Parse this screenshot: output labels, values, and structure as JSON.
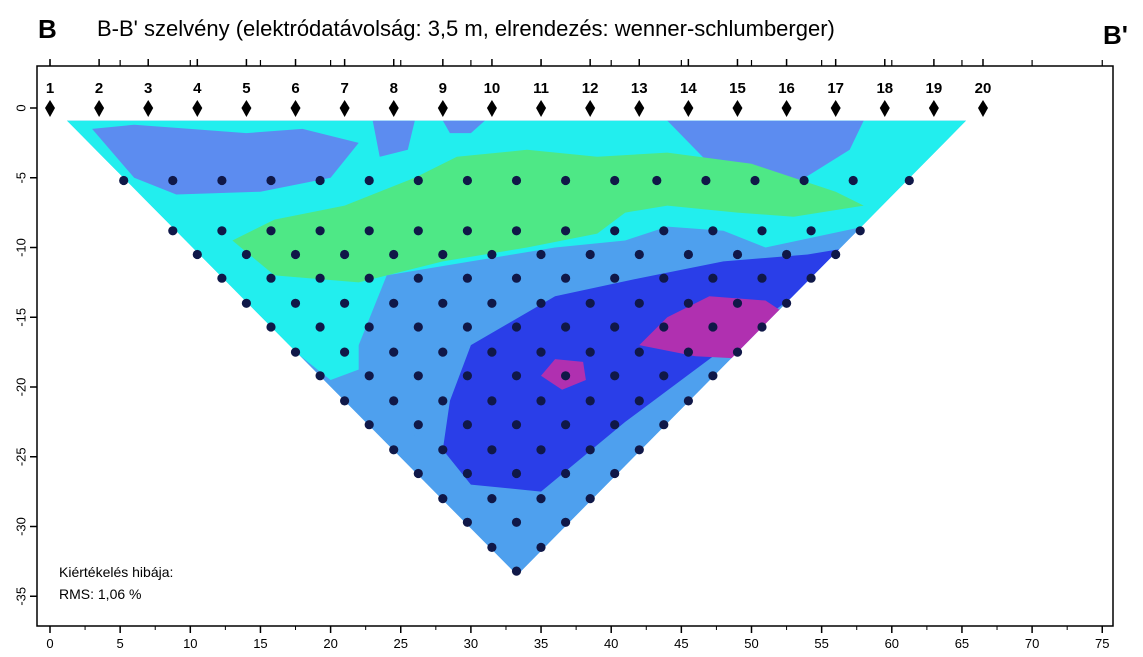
{
  "header": {
    "left_marker": "B",
    "right_marker": "B'",
    "title": "B-B' szelvény (elektródatávolság: 3,5 m, elrendezés: wenner-schlumberger)"
  },
  "colors": {
    "cyan": "#22eeee",
    "blue_medium": "#4ea0ee",
    "blue_light": "#5c8cf0",
    "blue_dark": "#2a3ee8",
    "green": "#4ee886",
    "magenta": "#b030b0",
    "data_point": "#101848"
  },
  "annotation": {
    "line1": "Kiértékelés hibája:",
    "line2": "RMS: 1,06 %"
  },
  "chart_data": {
    "type": "heatmap",
    "title": "B-B' szelvény (elektródatávolság: 3,5 m, elrendezés: wenner-schlumberger)",
    "xlabel": "",
    "ylabel": "",
    "xlim": [
      0,
      77
    ],
    "ylim": [
      -37,
      2
    ],
    "x_ticks": [
      0,
      5,
      10,
      15,
      20,
      25,
      30,
      35,
      40,
      45,
      50,
      55,
      60,
      65,
      70,
      75
    ],
    "y_ticks": [
      0,
      -5,
      -10,
      -15,
      -20,
      -25,
      -30,
      -35
    ],
    "electrode_spacing_m": 3.5,
    "electrodes": [
      {
        "label": "1",
        "x": 0.0
      },
      {
        "label": "2",
        "x": 3.5
      },
      {
        "label": "3",
        "x": 7.0
      },
      {
        "label": "4",
        "x": 10.5
      },
      {
        "label": "5",
        "x": 14.0
      },
      {
        "label": "6",
        "x": 17.5
      },
      {
        "label": "7",
        "x": 21.0
      },
      {
        "label": "8",
        "x": 24.5
      },
      {
        "label": "9",
        "x": 28.0
      },
      {
        "label": "10",
        "x": 31.5
      },
      {
        "label": "11",
        "x": 35.0
      },
      {
        "label": "12",
        "x": 38.5
      },
      {
        "label": "13",
        "x": 42.0
      },
      {
        "label": "14",
        "x": 45.5
      },
      {
        "label": "15",
        "x": 49.0
      },
      {
        "label": "16",
        "x": 52.5
      },
      {
        "label": "17",
        "x": 56.0
      },
      {
        "label": "18",
        "x": 59.5
      },
      {
        "label": "19",
        "x": 63.0
      },
      {
        "label": "20",
        "x": 66.5
      }
    ],
    "section_outline": [
      [
        1.2,
        -0.9
      ],
      [
        65.3,
        -0.9
      ],
      [
        33.3,
        -33.5
      ]
    ],
    "measurement_rows": [
      {
        "depth": -5.2,
        "points": [
          5.25,
          8.75,
          12.25,
          15.75,
          19.25,
          22.75,
          26.25,
          29.75,
          33.25,
          36.75,
          40.25,
          43.25,
          46.75,
          50.25,
          53.75,
          57.25,
          61.25
        ]
      },
      {
        "depth": -8.8,
        "points": [
          8.75,
          12.25,
          15.75,
          19.25,
          22.75,
          26.25,
          29.75,
          33.25,
          36.75,
          40.25,
          43.75,
          47.25,
          50.75,
          54.25,
          57.75
        ]
      },
      {
        "depth": -10.5,
        "points": [
          10.5,
          14.0,
          17.5,
          21.0,
          24.5,
          28.0,
          31.5,
          35.0,
          38.5,
          42.0,
          45.5,
          49.0,
          52.5,
          56.0
        ]
      },
      {
        "depth": -12.2,
        "points": [
          12.25,
          15.75,
          19.25,
          22.75,
          26.25,
          29.75,
          33.25,
          36.75,
          40.25,
          43.75,
          47.25,
          50.75,
          54.25
        ]
      },
      {
        "depth": -14.0,
        "points": [
          14.0,
          17.5,
          21.0,
          24.5,
          28.0,
          31.5,
          35.0,
          38.5,
          42.0,
          45.5,
          49.0,
          52.5
        ]
      },
      {
        "depth": -15.7,
        "points": [
          15.75,
          19.25,
          22.75,
          26.25,
          29.75,
          33.25,
          36.75,
          40.25,
          43.75,
          47.25,
          50.75
        ]
      },
      {
        "depth": -17.5,
        "points": [
          17.5,
          21.0,
          24.5,
          28.0,
          31.5,
          35.0,
          38.5,
          42.0,
          45.5,
          49.0
        ]
      },
      {
        "depth": -19.2,
        "points": [
          19.25,
          22.75,
          26.25,
          29.75,
          33.25,
          36.75,
          40.25,
          43.75,
          47.25
        ]
      },
      {
        "depth": -21.0,
        "points": [
          21.0,
          24.5,
          28.0,
          31.5,
          35.0,
          38.5,
          42.0,
          45.5
        ]
      },
      {
        "depth": -22.7,
        "points": [
          22.75,
          26.25,
          29.75,
          33.25,
          36.75,
          40.25,
          43.75
        ]
      },
      {
        "depth": -24.5,
        "points": [
          24.5,
          28.0,
          31.5,
          35.0,
          38.5,
          42.0
        ]
      },
      {
        "depth": -26.2,
        "points": [
          26.25,
          29.75,
          33.25,
          36.75,
          40.25
        ]
      },
      {
        "depth": -28.0,
        "points": [
          28.0,
          31.5,
          35.0,
          38.5
        ]
      },
      {
        "depth": -29.7,
        "points": [
          29.75,
          33.25,
          36.75
        ]
      },
      {
        "depth": -31.5,
        "points": [
          31.5,
          35.0
        ]
      },
      {
        "depth": -33.2,
        "points": [
          33.25
        ]
      }
    ],
    "zones": [
      {
        "color": "blue_medium",
        "points": [
          [
            1.2,
            -0.9
          ],
          [
            65.3,
            -0.9
          ],
          [
            33.3,
            -33.5
          ]
        ]
      },
      {
        "color": "cyan",
        "points": [
          [
            1.2,
            -0.9
          ],
          [
            65.3,
            -0.9
          ],
          [
            58,
            -8.5
          ],
          [
            52,
            -11
          ],
          [
            46,
            -12.5
          ],
          [
            42,
            -14
          ],
          [
            36,
            -15
          ],
          [
            30,
            -16.5
          ],
          [
            24,
            -18
          ],
          [
            20,
            -19.5
          ],
          [
            17.5,
            -17.5
          ]
        ]
      },
      {
        "color": "blue_light",
        "points": [
          [
            3,
            -1.5
          ],
          [
            6,
            -1.2
          ],
          [
            14,
            -1.8
          ],
          [
            18,
            -1.5
          ],
          [
            22,
            -2.5
          ],
          [
            20,
            -5
          ],
          [
            15,
            -6
          ],
          [
            9,
            -6.2
          ],
          [
            6,
            -5
          ]
        ]
      },
      {
        "color": "blue_light",
        "points": [
          [
            23,
            -0.9
          ],
          [
            26,
            -0.9
          ],
          [
            25.5,
            -3
          ],
          [
            23.5,
            -3.5
          ]
        ]
      },
      {
        "color": "blue_light",
        "points": [
          [
            44,
            -0.9
          ],
          [
            58,
            -0.9
          ],
          [
            57,
            -3
          ],
          [
            53,
            -5.5
          ],
          [
            49,
            -6
          ],
          [
            47,
            -4
          ]
        ]
      },
      {
        "color": "blue_light",
        "points": [
          [
            28,
            -0.9
          ],
          [
            31,
            -0.9
          ],
          [
            30,
            -1.8
          ],
          [
            28.5,
            -1.8
          ]
        ]
      },
      {
        "color": "green",
        "points": [
          [
            13,
            -9.5
          ],
          [
            16,
            -8
          ],
          [
            21,
            -7
          ],
          [
            26,
            -5
          ],
          [
            29,
            -3.5
          ],
          [
            34,
            -3
          ],
          [
            39,
            -3.5
          ],
          [
            44,
            -3.2
          ],
          [
            50,
            -4
          ],
          [
            56,
            -6
          ],
          [
            58,
            -7
          ],
          [
            53,
            -7.8
          ],
          [
            49,
            -7.5
          ],
          [
            44,
            -7
          ],
          [
            41,
            -7.5
          ],
          [
            39,
            -9
          ],
          [
            34,
            -10
          ],
          [
            28,
            -11
          ],
          [
            22,
            -12.5
          ],
          [
            16,
            -12
          ]
        ]
      },
      {
        "color": "blue_medium",
        "points": [
          [
            24,
            -12
          ],
          [
            30,
            -11
          ],
          [
            36,
            -10
          ],
          [
            41,
            -9.5
          ],
          [
            44,
            -8.5
          ],
          [
            48,
            -8.8
          ],
          [
            51,
            -10
          ],
          [
            58,
            -8.5
          ],
          [
            52,
            -14.5
          ],
          [
            46,
            -17.5
          ],
          [
            40,
            -22
          ],
          [
            34,
            -27.5
          ],
          [
            27,
            -24
          ],
          [
            22,
            -21.5
          ],
          [
            22,
            -17
          ]
        ]
      },
      {
        "color": "blue_dark",
        "points": [
          [
            30,
            -17
          ],
          [
            36,
            -13.5
          ],
          [
            42,
            -12.2
          ],
          [
            48,
            -11
          ],
          [
            54,
            -10.5
          ],
          [
            57,
            -10
          ],
          [
            53,
            -13.5
          ],
          [
            47,
            -18
          ],
          [
            41,
            -22.5
          ],
          [
            35,
            -27.5
          ],
          [
            30,
            -27
          ],
          [
            28,
            -24.5
          ],
          [
            28.5,
            -21
          ]
        ]
      },
      {
        "color": "magenta",
        "points": [
          [
            42,
            -17
          ],
          [
            44,
            -15
          ],
          [
            47,
            -13.5
          ],
          [
            51,
            -13.8
          ],
          [
            52.5,
            -14.8
          ],
          [
            50,
            -18
          ],
          [
            46,
            -17.8
          ]
        ]
      },
      {
        "color": "magenta",
        "points": [
          [
            35,
            -19.2
          ],
          [
            36,
            -18
          ],
          [
            38,
            -18.2
          ],
          [
            38.2,
            -19.5
          ],
          [
            36.5,
            -20.2
          ]
        ]
      }
    ],
    "grid": false
  }
}
